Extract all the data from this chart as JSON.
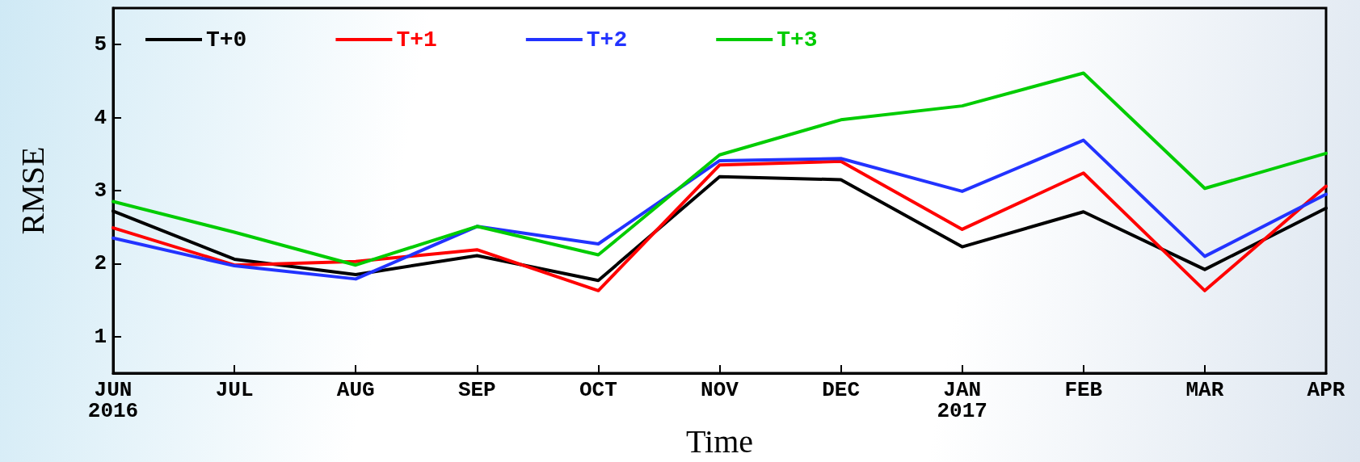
{
  "chart_data": {
    "type": "line",
    "xlabel": "Time",
    "ylabel": "RMSE",
    "categories": [
      "JUN\n2016",
      "JUL",
      "AUG",
      "SEP",
      "OCT",
      "NOV",
      "DEC",
      "JAN\n2017",
      "FEB",
      "MAR",
      "APR"
    ],
    "series": [
      {
        "name": "T+0",
        "color": "#000000",
        "values": [
          2.72,
          2.06,
          1.85,
          2.11,
          1.77,
          3.19,
          3.15,
          2.23,
          2.71,
          1.92,
          2.76
        ]
      },
      {
        "name": "T+1",
        "color": "#ff0000",
        "values": [
          2.49,
          1.98,
          2.03,
          2.19,
          1.63,
          3.35,
          3.4,
          2.47,
          3.24,
          1.63,
          3.06
        ]
      },
      {
        "name": "T+2",
        "color": "#2233ff",
        "values": [
          2.35,
          1.97,
          1.79,
          2.51,
          2.27,
          3.41,
          3.44,
          2.99,
          3.69,
          2.1,
          2.95
        ]
      },
      {
        "name": "T+3",
        "color": "#00cc00",
        "values": [
          2.85,
          2.43,
          1.98,
          2.51,
          2.12,
          3.49,
          3.97,
          4.16,
          4.61,
          3.03,
          3.51
        ]
      }
    ],
    "ylim": [
      0.5,
      5.5
    ],
    "yticks": [
      1,
      2,
      3,
      4,
      5
    ],
    "grid": false,
    "legend": "top left",
    "marker": "none",
    "line_style": "solid"
  }
}
